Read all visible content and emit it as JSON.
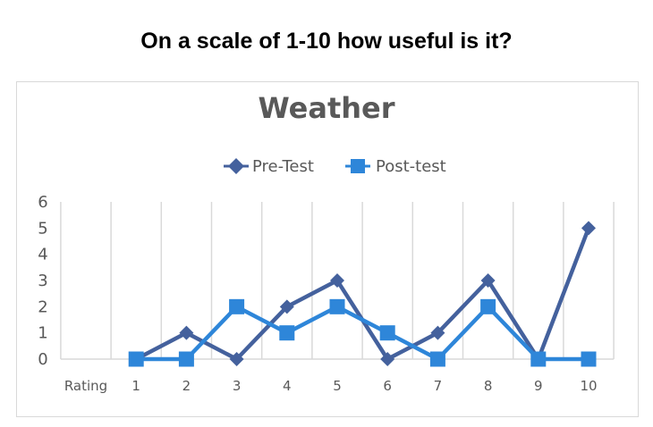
{
  "page": {
    "heading": "On a scale of 1-10 how useful is it?"
  },
  "chart_data": {
    "type": "line",
    "title": "Weather",
    "categories": [
      "Rating",
      "1",
      "2",
      "3",
      "4",
      "5",
      "6",
      "7",
      "8",
      "9",
      "10"
    ],
    "ylim": [
      0,
      6
    ],
    "yticks": [
      "0",
      "1",
      "2",
      "3",
      "4",
      "5",
      "6"
    ],
    "grid": "vertical",
    "legend_position": "top",
    "series": [
      {
        "name": "Pre-Test",
        "marker": "diamond",
        "color": "#44619d",
        "values": [
          null,
          0,
          1,
          0,
          2,
          3,
          0,
          1,
          3,
          0,
          5
        ]
      },
      {
        "name": "Post-test",
        "marker": "square",
        "color": "#2e86d9",
        "values": [
          null,
          0,
          0,
          2,
          1,
          2,
          1,
          0,
          2,
          0,
          0
        ]
      }
    ]
  }
}
